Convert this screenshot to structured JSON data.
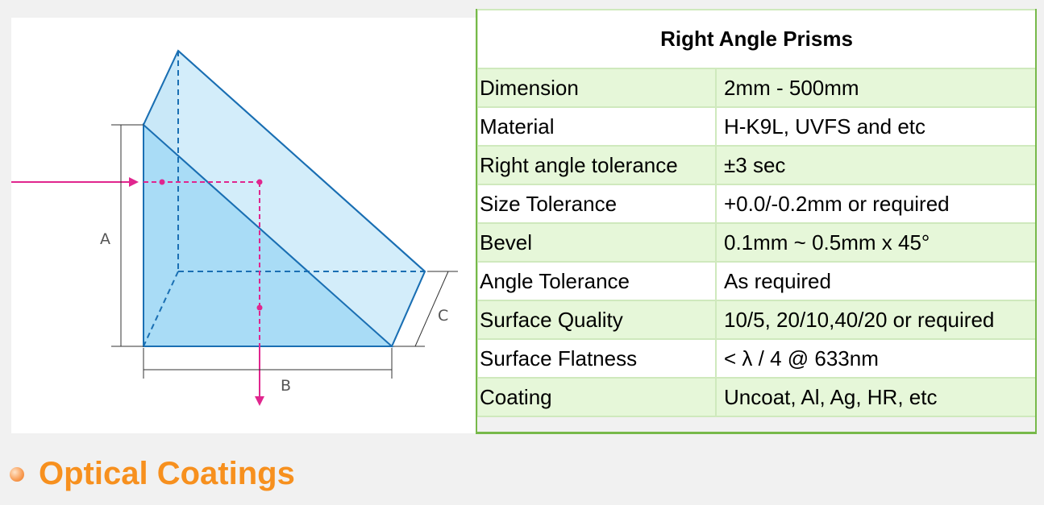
{
  "diagram": {
    "labels": {
      "a": "A",
      "b": "B",
      "c": "C"
    },
    "colors": {
      "prism_edge": "#1a6fb3",
      "prism_front_face": "#a9dcf6",
      "prism_slant_face": "#d3edfa",
      "light_path": "#e0268e",
      "dimension_line": "#333333"
    }
  },
  "table": {
    "title": "Right Angle Prisms",
    "rows": [
      {
        "property": "Dimension",
        "value": "2mm - 500mm"
      },
      {
        "property": "Material",
        "value": "H-K9L, UVFS and etc"
      },
      {
        "property": "Right angle tolerance",
        "value": "±3 sec"
      },
      {
        "property": "Size Tolerance",
        "value": "+0.0/-0.2mm or required"
      },
      {
        "property": "Bevel",
        "value": "0.1mm ~ 0.5mm x 45°"
      },
      {
        "property": "Angle Tolerance",
        "value": "As required"
      },
      {
        "property": "Surface Quality",
        "value": "10/5, 20/10,40/20 or required"
      },
      {
        "property": "Surface Flatness",
        "value": "< λ / 4 @ 633nm"
      },
      {
        "property": "Coating",
        "value": "Uncoat, Al, Ag, HR, etc"
      }
    ]
  },
  "section": {
    "heading": "Optical Coatings",
    "accent_color": "#f7901e"
  }
}
